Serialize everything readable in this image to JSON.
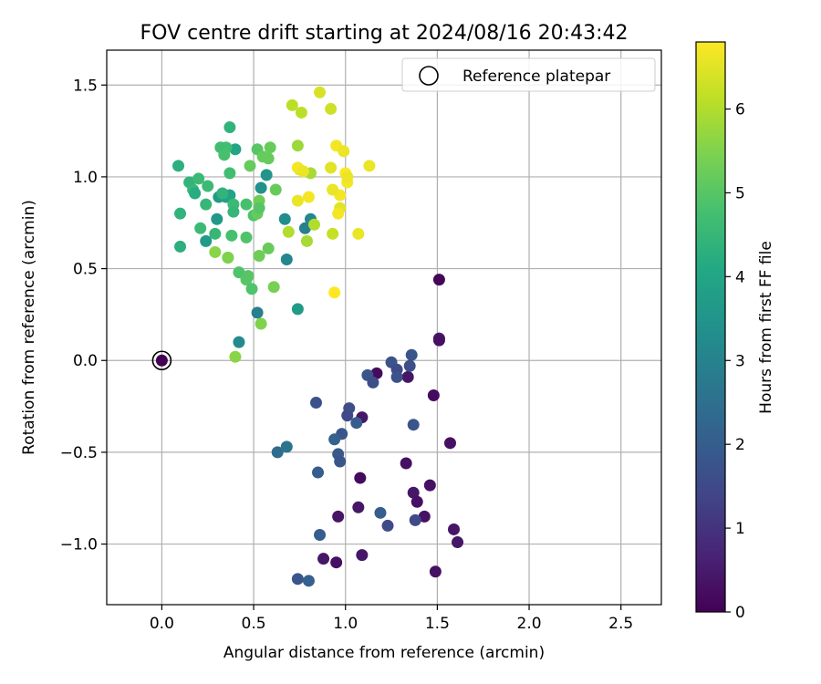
{
  "chart_data": {
    "type": "scatter",
    "title": "FOV centre drift starting at 2024/08/16 20:43:42",
    "xlabel": "Angular distance from reference (arcmin)",
    "ylabel": "Rotation from reference (arcmin)",
    "xlim": [
      -0.3,
      2.72
    ],
    "ylim": [
      -1.33,
      1.69
    ],
    "xticks": [
      0.0,
      0.5,
      1.0,
      1.5,
      2.0,
      2.5
    ],
    "xtick_labels": [
      "0.0",
      "0.5",
      "1.0",
      "1.5",
      "2.0",
      "2.5"
    ],
    "yticks": [
      -1.0,
      -0.5,
      0.0,
      0.5,
      1.0,
      1.5
    ],
    "ytick_labels": [
      "−1.0",
      "−0.5",
      "0.0",
      "0.5",
      "1.0",
      "1.5"
    ],
    "grid": true,
    "legend": {
      "placement": "top-right",
      "entries": [
        "Reference platepar"
      ]
    },
    "reference_point": {
      "x": 0.0,
      "y": 0.0
    },
    "colorbar": {
      "label": "Hours from first FF file",
      "range": [
        0,
        6.8
      ],
      "ticks": [
        0,
        1,
        2,
        3,
        4,
        5,
        6
      ],
      "tick_labels": [
        "0",
        "1",
        "2",
        "3",
        "4",
        "5",
        "6"
      ],
      "colormap": "viridis"
    },
    "points": [
      {
        "x": 0.0,
        "y": 0.0,
        "h": 0.0
      },
      {
        "x": 1.51,
        "y": 0.44,
        "h": 0.1
      },
      {
        "x": 1.51,
        "y": 0.12,
        "h": 0.5
      },
      {
        "x": 1.51,
        "y": 0.11,
        "h": 0.3
      },
      {
        "x": 1.34,
        "y": -0.09,
        "h": 0.4
      },
      {
        "x": 1.17,
        "y": -0.07,
        "h": 0.2
      },
      {
        "x": 1.48,
        "y": -0.19,
        "h": 0.2
      },
      {
        "x": 1.09,
        "y": -0.31,
        "h": 0.4
      },
      {
        "x": 1.57,
        "y": -0.45,
        "h": 0.3
      },
      {
        "x": 1.33,
        "y": -0.56,
        "h": 0.3
      },
      {
        "x": 1.08,
        "y": -0.64,
        "h": 0.2
      },
      {
        "x": 1.46,
        "y": -0.68,
        "h": 0.3
      },
      {
        "x": 1.37,
        "y": -0.72,
        "h": 0.4
      },
      {
        "x": 1.39,
        "y": -0.77,
        "h": 0.3
      },
      {
        "x": 1.07,
        "y": -0.8,
        "h": 0.4
      },
      {
        "x": 0.96,
        "y": -0.85,
        "h": 0.4
      },
      {
        "x": 1.43,
        "y": -0.85,
        "h": 0.3
      },
      {
        "x": 1.59,
        "y": -0.92,
        "h": 0.4
      },
      {
        "x": 1.61,
        "y": -0.99,
        "h": 0.4
      },
      {
        "x": 1.09,
        "y": -1.06,
        "h": 0.4
      },
      {
        "x": 0.88,
        "y": -1.08,
        "h": 0.4
      },
      {
        "x": 0.95,
        "y": -1.1,
        "h": 0.3
      },
      {
        "x": 1.49,
        "y": -1.15,
        "h": 0.3
      },
      {
        "x": 1.36,
        "y": 0.03,
        "h": 1.8
      },
      {
        "x": 1.25,
        "y": -0.01,
        "h": 1.7
      },
      {
        "x": 1.28,
        "y": -0.05,
        "h": 1.5
      },
      {
        "x": 1.35,
        "y": -0.03,
        "h": 1.6
      },
      {
        "x": 1.28,
        "y": -0.09,
        "h": 1.7
      },
      {
        "x": 1.12,
        "y": -0.08,
        "h": 1.8
      },
      {
        "x": 1.15,
        "y": -0.12,
        "h": 1.6
      },
      {
        "x": 0.84,
        "y": -0.23,
        "h": 1.7
      },
      {
        "x": 1.02,
        "y": -0.26,
        "h": 1.6
      },
      {
        "x": 1.01,
        "y": -0.3,
        "h": 1.5
      },
      {
        "x": 1.06,
        "y": -0.34,
        "h": 2.0
      },
      {
        "x": 1.37,
        "y": -0.35,
        "h": 1.8
      },
      {
        "x": 0.98,
        "y": -0.4,
        "h": 1.8
      },
      {
        "x": 0.94,
        "y": -0.43,
        "h": 2.1
      },
      {
        "x": 0.96,
        "y": -0.51,
        "h": 1.9
      },
      {
        "x": 0.97,
        "y": -0.55,
        "h": 1.8
      },
      {
        "x": 0.85,
        "y": -0.61,
        "h": 2.0
      },
      {
        "x": 1.19,
        "y": -0.83,
        "h": 2.0
      },
      {
        "x": 1.23,
        "y": -0.9,
        "h": 1.5
      },
      {
        "x": 1.38,
        "y": -0.87,
        "h": 1.5
      },
      {
        "x": 0.86,
        "y": -0.95,
        "h": 2.0
      },
      {
        "x": 0.74,
        "y": -1.19,
        "h": 1.8
      },
      {
        "x": 0.8,
        "y": -1.2,
        "h": 2.1
      },
      {
        "x": 0.63,
        "y": -0.5,
        "h": 2.4
      },
      {
        "x": 0.68,
        "y": -0.47,
        "h": 2.6
      },
      {
        "x": 0.42,
        "y": 0.1,
        "h": 3.2
      },
      {
        "x": 0.52,
        "y": 0.26,
        "h": 2.9
      },
      {
        "x": 0.74,
        "y": 0.28,
        "h": 3.7
      },
      {
        "x": 0.68,
        "y": 0.55,
        "h": 3.1
      },
      {
        "x": 0.78,
        "y": 0.72,
        "h": 2.9
      },
      {
        "x": 0.81,
        "y": 0.77,
        "h": 3.1
      },
      {
        "x": 0.67,
        "y": 0.77,
        "h": 3.3
      },
      {
        "x": 0.54,
        "y": 0.94,
        "h": 3.4
      },
      {
        "x": 0.57,
        "y": 1.01,
        "h": 3.5
      },
      {
        "x": 0.3,
        "y": 0.77,
        "h": 3.6
      },
      {
        "x": 0.24,
        "y": 0.65,
        "h": 3.7
      },
      {
        "x": 0.31,
        "y": 0.89,
        "h": 3.7
      },
      {
        "x": 0.35,
        "y": 0.89,
        "h": 3.8
      },
      {
        "x": 0.37,
        "y": 0.9,
        "h": 3.9
      },
      {
        "x": 0.4,
        "y": 1.15,
        "h": 4.0
      },
      {
        "x": 0.09,
        "y": 1.06,
        "h": 4.3
      },
      {
        "x": 0.1,
        "y": 0.8,
        "h": 4.4
      },
      {
        "x": 0.1,
        "y": 0.62,
        "h": 4.3
      },
      {
        "x": 0.15,
        "y": 0.97,
        "h": 4.4
      },
      {
        "x": 0.17,
        "y": 0.93,
        "h": 4.5
      },
      {
        "x": 0.18,
        "y": 0.91,
        "h": 4.2
      },
      {
        "x": 0.2,
        "y": 0.99,
        "h": 4.6
      },
      {
        "x": 0.25,
        "y": 0.95,
        "h": 4.6
      },
      {
        "x": 0.24,
        "y": 0.85,
        "h": 4.5
      },
      {
        "x": 0.21,
        "y": 0.72,
        "h": 4.6
      },
      {
        "x": 0.29,
        "y": 0.69,
        "h": 4.5
      },
      {
        "x": 0.33,
        "y": 0.91,
        "h": 4.4
      },
      {
        "x": 0.37,
        "y": 1.27,
        "h": 4.4
      },
      {
        "x": 0.32,
        "y": 1.16,
        "h": 4.7
      },
      {
        "x": 0.35,
        "y": 1.16,
        "h": 4.7
      },
      {
        "x": 0.34,
        "y": 1.12,
        "h": 4.8
      },
      {
        "x": 0.37,
        "y": 1.02,
        "h": 4.7
      },
      {
        "x": 0.39,
        "y": 0.85,
        "h": 4.6
      },
      {
        "x": 0.39,
        "y": 0.81,
        "h": 4.5
      },
      {
        "x": 0.38,
        "y": 0.68,
        "h": 4.8
      },
      {
        "x": 0.46,
        "y": 0.67,
        "h": 4.9
      },
      {
        "x": 0.36,
        "y": 0.56,
        "h": 4.9
      },
      {
        "x": 0.42,
        "y": 0.48,
        "h": 4.9
      },
      {
        "x": 0.46,
        "y": 0.44,
        "h": 5.0
      },
      {
        "x": 0.47,
        "y": 0.46,
        "h": 5.0
      },
      {
        "x": 0.49,
        "y": 0.39,
        "h": 4.9
      },
      {
        "x": 0.46,
        "y": 0.85,
        "h": 4.8
      },
      {
        "x": 0.5,
        "y": 0.79,
        "h": 4.9
      },
      {
        "x": 0.52,
        "y": 0.8,
        "h": 5.2
      },
      {
        "x": 0.53,
        "y": 0.87,
        "h": 5.3
      },
      {
        "x": 0.53,
        "y": 0.83,
        "h": 5.0
      },
      {
        "x": 0.52,
        "y": 1.15,
        "h": 5.0
      },
      {
        "x": 0.55,
        "y": 1.11,
        "h": 5.2
      },
      {
        "x": 0.59,
        "y": 1.16,
        "h": 5.2
      },
      {
        "x": 0.58,
        "y": 1.1,
        "h": 5.2
      },
      {
        "x": 0.48,
        "y": 1.06,
        "h": 5.2
      },
      {
        "x": 0.62,
        "y": 0.93,
        "h": 5.2
      },
      {
        "x": 0.53,
        "y": 0.57,
        "h": 5.3
      },
      {
        "x": 0.58,
        "y": 0.61,
        "h": 5.2
      },
      {
        "x": 0.61,
        "y": 0.4,
        "h": 5.4
      },
      {
        "x": 0.54,
        "y": 0.2,
        "h": 5.5
      },
      {
        "x": 0.4,
        "y": 0.02,
        "h": 5.6
      },
      {
        "x": 0.29,
        "y": 0.59,
        "h": 5.6
      },
      {
        "x": 0.36,
        "y": 0.56,
        "h": 5.5
      },
      {
        "x": 0.74,
        "y": 1.17,
        "h": 5.8
      },
      {
        "x": 0.81,
        "y": 1.02,
        "h": 5.9
      },
      {
        "x": 0.79,
        "y": 0.65,
        "h": 5.9
      },
      {
        "x": 0.83,
        "y": 0.74,
        "h": 6.0
      },
      {
        "x": 0.69,
        "y": 0.7,
        "h": 6.0
      },
      {
        "x": 0.93,
        "y": 0.69,
        "h": 6.2
      },
      {
        "x": 0.71,
        "y": 1.39,
        "h": 6.1
      },
      {
        "x": 0.76,
        "y": 1.35,
        "h": 6.1
      },
      {
        "x": 0.86,
        "y": 1.46,
        "h": 6.4
      },
      {
        "x": 0.92,
        "y": 1.37,
        "h": 6.3
      },
      {
        "x": 0.75,
        "y": 1.04,
        "h": 6.4
      },
      {
        "x": 0.92,
        "y": 1.05,
        "h": 6.5
      },
      {
        "x": 0.95,
        "y": 1.17,
        "h": 6.7
      },
      {
        "x": 0.99,
        "y": 1.14,
        "h": 6.6
      },
      {
        "x": 1.0,
        "y": 1.02,
        "h": 6.8
      },
      {
        "x": 1.01,
        "y": 0.97,
        "h": 6.7
      },
      {
        "x": 1.01,
        "y": 1.0,
        "h": 6.6
      },
      {
        "x": 0.97,
        "y": 0.9,
        "h": 6.7
      },
      {
        "x": 0.97,
        "y": 0.83,
        "h": 6.5
      },
      {
        "x": 0.96,
        "y": 0.8,
        "h": 6.7
      },
      {
        "x": 0.93,
        "y": 0.93,
        "h": 6.6
      },
      {
        "x": 0.8,
        "y": 0.89,
        "h": 6.7
      },
      {
        "x": 0.74,
        "y": 0.87,
        "h": 6.6
      },
      {
        "x": 0.74,
        "y": 1.05,
        "h": 6.7
      },
      {
        "x": 0.77,
        "y": 1.03,
        "h": 6.6
      },
      {
        "x": 1.07,
        "y": 0.69,
        "h": 6.6
      },
      {
        "x": 1.13,
        "y": 1.06,
        "h": 6.6
      },
      {
        "x": 0.94,
        "y": 0.37,
        "h": 6.8
      }
    ]
  }
}
